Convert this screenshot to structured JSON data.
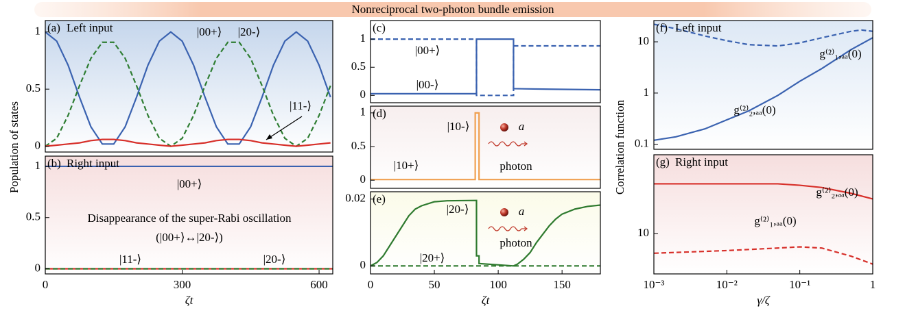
{
  "title": "Nonreciprocal two-photon bundle emission",
  "chart_data": [
    {
      "type": "line",
      "label": "(a)",
      "title": "Left input",
      "ylabel": "Population of  states",
      "background": "#c5d6ec",
      "xlim": [
        0,
        630
      ],
      "ylim": [
        -0.05,
        1.1
      ],
      "yticks": [
        0,
        0.5,
        1
      ],
      "x": [
        0,
        25,
        50,
        75,
        100,
        125,
        150,
        175,
        200,
        225,
        250,
        275,
        300,
        325,
        350,
        375,
        400,
        425,
        450,
        475,
        500,
        525,
        550,
        575,
        600,
        625
      ],
      "series": [
        {
          "color": "#3a62b0",
          "values": [
            1,
            0.92,
            0.71,
            0.43,
            0.17,
            0.02,
            0.02,
            0.17,
            0.43,
            0.71,
            0.92,
            1,
            0.92,
            0.71,
            0.43,
            0.17,
            0.02,
            0.02,
            0.17,
            0.43,
            0.71,
            0.92,
            1,
            0.92,
            0.71,
            0.43
          ]
        },
        {
          "color": "#2e7d32",
          "dash": true,
          "values": [
            0,
            0.07,
            0.27,
            0.53,
            0.77,
            0.91,
            0.91,
            0.77,
            0.53,
            0.27,
            0.07,
            0,
            0.07,
            0.27,
            0.53,
            0.77,
            0.91,
            0.91,
            0.77,
            0.53,
            0.27,
            0.07,
            0,
            0.07,
            0.27,
            0.53
          ]
        },
        {
          "color": "#d7302a",
          "values": [
            0,
            0.01,
            0.02,
            0.03,
            0.05,
            0.06,
            0.06,
            0.05,
            0.03,
            0.02,
            0.01,
            0,
            0.01,
            0.02,
            0.03,
            0.05,
            0.06,
            0.06,
            0.05,
            0.03,
            0.02,
            0.01,
            0,
            0.01,
            0.02,
            0.03
          ]
        }
      ],
      "annotations": [
        "|00+⟩",
        "|20-⟩",
        "|11-⟩"
      ]
    },
    {
      "type": "line",
      "label": "(b)",
      "title": "Right input",
      "xlabel": "ζt",
      "background": "#f6dede",
      "xlim": [
        0,
        630
      ],
      "ylim": [
        -0.05,
        1.1
      ],
      "yticks": [
        0,
        0.5,
        1
      ],
      "xticks": [
        0,
        300,
        600
      ],
      "x": [
        0,
        630
      ],
      "series": [
        {
          "color": "#3a62b0",
          "values": [
            1,
            1
          ]
        },
        {
          "color": "#d7302a",
          "values": [
            0,
            0
          ]
        },
        {
          "color": "#2e7d32",
          "dash": true,
          "values": [
            0,
            0
          ]
        }
      ],
      "annotations": [
        "|00+⟩",
        "Disappearance of the super-Rabi oscillation",
        "(|00+⟩↔|20-⟩)",
        "|11-⟩",
        "|20-⟩"
      ]
    },
    {
      "type": "line",
      "label": "(c)",
      "background": "#ffffff",
      "xlim": [
        0,
        180
      ],
      "ylim": [
        -0.13,
        1.33
      ],
      "yticks": [
        0,
        0.5,
        1
      ],
      "series": [
        {
          "color": "#3a62b0",
          "x": [
            0,
            83,
            83,
            112,
            112,
            140,
            180
          ],
          "values": [
            0.03,
            0.03,
            1,
            1,
            0.12,
            0.11,
            0.1
          ]
        },
        {
          "color": "#3a62b0",
          "dash": true,
          "x": [
            0,
            83,
            83,
            112,
            112,
            180
          ],
          "values": [
            1,
            1,
            0,
            0,
            0.88,
            0.88
          ]
        }
      ],
      "annotations": [
        "|00+⟩",
        "|00-⟩"
      ]
    },
    {
      "type": "line",
      "label": "(d)",
      "background": "#f7eeee",
      "xlim": [
        0,
        180
      ],
      "ylim": [
        -0.12,
        1.1
      ],
      "yticks": [
        0,
        0.5,
        1
      ],
      "series": [
        {
          "color": "#f0a050",
          "x": [
            0,
            82,
            82,
            85,
            85,
            180
          ],
          "values": [
            0.01,
            0.01,
            1,
            1,
            0.01,
            0.01
          ]
        }
      ],
      "annotations": [
        "|10-⟩",
        "|10+⟩",
        "a",
        "photon"
      ]
    },
    {
      "type": "line",
      "label": "(e)",
      "xlabel": "ζt",
      "background": "#fbfbe9",
      "xlim": [
        0,
        180
      ],
      "ylim": [
        -0.0024,
        0.0222
      ],
      "yticks": [
        0,
        0.02
      ],
      "xticks": [
        0,
        50,
        100,
        150
      ],
      "series": [
        {
          "color": "#2e7a2e",
          "x": [
            0,
            5,
            10,
            15,
            20,
            25,
            30,
            35,
            40,
            50,
            60,
            83,
            83,
            85,
            85,
            112,
            115,
            120,
            125,
            130,
            135,
            140,
            145,
            150,
            160,
            170,
            180
          ],
          "values": [
            0,
            0.001,
            0.003,
            0.006,
            0.009,
            0.012,
            0.015,
            0.017,
            0.018,
            0.0192,
            0.0195,
            0.0196,
            0.003,
            0.003,
            0.0007,
            0,
            0.0005,
            0.002,
            0.004,
            0.007,
            0.0095,
            0.012,
            0.014,
            0.0155,
            0.017,
            0.0178,
            0.0182
          ]
        },
        {
          "color": "#2e7a2e",
          "dash": true,
          "x": [
            0,
            180
          ],
          "values": [
            0,
            0
          ]
        }
      ],
      "annotations": [
        "|20-⟩",
        "|20+⟩",
        "a",
        "photon"
      ]
    },
    {
      "type": "line",
      "label": "(f)",
      "title": "Left input",
      "ylabel": "Correlation function",
      "background": "#dde8f5",
      "xscale": "log",
      "yscale": "log",
      "xlim": [
        0.001,
        1
      ],
      "ylim": [
        0.08,
        26
      ],
      "yticks": [
        0.1,
        1,
        10
      ],
      "series": [
        {
          "color": "#3a62b0",
          "dash": true,
          "x": [
            0.001,
            0.002,
            0.005,
            0.01,
            0.02,
            0.05,
            0.1,
            0.2,
            0.5,
            0.7,
            1
          ],
          "values": [
            22,
            18,
            13,
            10.5,
            8.8,
            8.3,
            9.5,
            12,
            16,
            17,
            16
          ]
        },
        {
          "color": "#3a62b0",
          "x": [
            0.001,
            0.002,
            0.005,
            0.01,
            0.02,
            0.05,
            0.1,
            0.2,
            0.5,
            1
          ],
          "values": [
            0.12,
            0.14,
            0.2,
            0.3,
            0.45,
            0.9,
            1.7,
            3,
            7,
            12
          ]
        }
      ],
      "annotations": [
        "g⁽²⁾₁,ₐₐ(0)",
        "g⁽²⁾₂,ₐₐ(0)"
      ]
    },
    {
      "type": "line",
      "label": "(g)",
      "title": "Right input",
      "xlabel": "γ/ζ",
      "background": "#f6dede",
      "xscale": "log",
      "yscale": "log",
      "xlim": [
        0.001,
        1
      ],
      "ylim": [
        4,
        60
      ],
      "yticks": [
        10
      ],
      "xticks": [
        {
          "value": 0.001,
          "label": "10⁻³"
        },
        {
          "value": 0.01,
          "label": "10⁻²"
        },
        {
          "value": 0.1,
          "label": "10⁻¹"
        },
        1
      ],
      "series": [
        {
          "color": "#d7302a",
          "x": [
            0.001,
            0.01,
            0.05,
            0.1,
            0.2,
            0.5,
            1
          ],
          "values": [
            31,
            31,
            31,
            30,
            28.5,
            25,
            22
          ]
        },
        {
          "color": "#d7302a",
          "dash": true,
          "x": [
            0.001,
            0.01,
            0.05,
            0.1,
            0.2,
            0.5,
            1
          ],
          "values": [
            6.4,
            6.8,
            7.2,
            7.4,
            7.2,
            6,
            5
          ]
        }
      ],
      "annotations": [
        "g⁽²⁾₂,ₐₐ(0)",
        "g⁽²⁾₁,ₐₐ(0)"
      ]
    }
  ]
}
